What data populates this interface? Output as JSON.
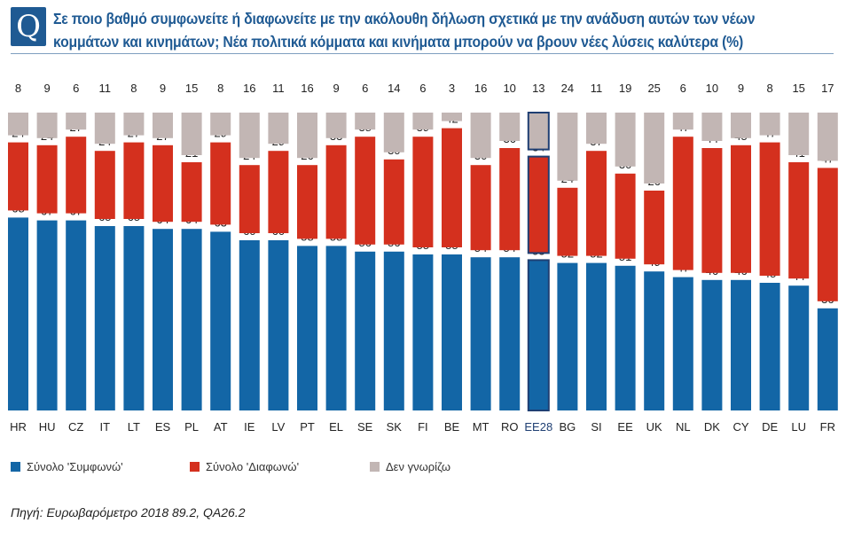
{
  "badge": "Q",
  "title_lines": [
    "Σε ποιο βαθμό συμφωνείτε ή διαφωνείτε με την ακόλουθη δήλωση σχετικά με την ανάδυση αυτών των νέων",
    "κομμάτων και κινημάτων; Νέα πολιτικά κόμματα και κινήματα μπορούν να βρουν νέες λύσεις καλύτερα (%)"
  ],
  "source": "Πηγή: Ευρωβαρόμετρο 2018 89.2, QA26.2",
  "colors": {
    "agree": "#1366a6",
    "disagree": "#d4301e",
    "dontknow": "#c2b6b4",
    "highlight_border": "#1f3f73",
    "highlight_label": "#1f3f73"
  },
  "legend": [
    {
      "label": "Σύνολο 'Συμφωνώ'",
      "color": "#1366a6"
    },
    {
      "label": "Σύνολο 'Διαφωνώ'",
      "color": "#d4301e"
    },
    {
      "label": "Δεν γνωρίζω",
      "color": "#c2b6b4"
    }
  ],
  "chart_data": {
    "type": "bar",
    "stacked": true,
    "title": "Σε ποιο βαθμό συμφωνείτε ή διαφωνείτε με την ακόλουθη δήλωση σχετικά με την ανάδυση αυτών των νέων κομμάτων και κινημάτων; Νέα πολιτικά κόμματα και κινήματα μπορούν να βρουν νέες λύσεις καλύτερα (%)",
    "categories": [
      "HR",
      "HU",
      "CZ",
      "IT",
      "LT",
      "ES",
      "PL",
      "AT",
      "IE",
      "LV",
      "PT",
      "EL",
      "SE",
      "SK",
      "FI",
      "BE",
      "MT",
      "RO",
      "EE28",
      "BG",
      "SI",
      "EE",
      "UK",
      "NL",
      "DK",
      "CY",
      "DE",
      "LU",
      "FR"
    ],
    "highlight": "EE28",
    "series": [
      {
        "name": "Σύνολο 'Συμφωνώ'",
        "values": [
          68,
          67,
          67,
          65,
          65,
          64,
          64,
          63,
          60,
          60,
          58,
          58,
          56,
          56,
          55,
          55,
          54,
          54,
          53,
          52,
          52,
          51,
          49,
          47,
          46,
          46,
          45,
          44,
          36
        ]
      },
      {
        "name": "Σύνολο 'Διαφωνώ'",
        "values": [
          24,
          24,
          27,
          24,
          27,
          27,
          21,
          29,
          24,
          29,
          26,
          33,
          38,
          30,
          39,
          42,
          30,
          36,
          34,
          24,
          37,
          30,
          26,
          47,
          44,
          45,
          47,
          41,
          47
        ]
      },
      {
        "name": "Δεν γνωρίζω",
        "values": [
          8,
          9,
          6,
          11,
          8,
          9,
          15,
          8,
          16,
          11,
          16,
          9,
          6,
          14,
          6,
          3,
          16,
          10,
          13,
          24,
          11,
          19,
          25,
          6,
          10,
          9,
          8,
          15,
          17
        ]
      }
    ],
    "xlabel": "",
    "ylabel": "",
    "ylim": [
      0,
      100
    ],
    "unit": "%"
  }
}
